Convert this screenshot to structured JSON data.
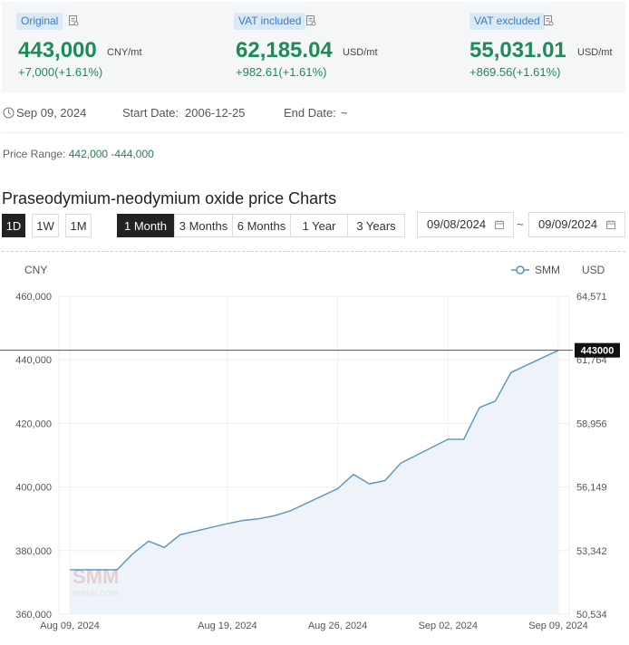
{
  "header": {
    "cards": [
      {
        "badge": "Original",
        "value": "443,000",
        "unit": "CNY/mt",
        "change": "+7,000(+1.61%)"
      },
      {
        "badge": "VAT included",
        "value": "62,185.04",
        "unit": "USD/mt",
        "change": "+982.61(+1.61%)"
      },
      {
        "badge": "VAT excluded",
        "value": "55,031.01",
        "unit": "USD/mt",
        "change": "+869.56(+1.61%)"
      }
    ]
  },
  "info": {
    "date": "Sep 09, 2024",
    "start_label": "Start Date:",
    "start_value": "2006-12-25",
    "end_label": "End Date:",
    "end_value": "~"
  },
  "price_range": {
    "label": "Price Range:",
    "value": "442,000 -444,000"
  },
  "chart_title": "Praseodymium-neodymium oxide price Charts",
  "controls": {
    "short_buttons": [
      "1D",
      "1W",
      "1M"
    ],
    "range_buttons": [
      "1 Month",
      "3 Months",
      "6 Months",
      "1 Year",
      "3 Years"
    ],
    "active_short": "1D",
    "active_range": "1 Month",
    "date_from": "09/08/2024",
    "date_to": "09/09/2024",
    "date_separator": "~"
  },
  "colors": {
    "accent": "#1f8a5a",
    "line": "#5b93bd",
    "fill": "#edf3f8",
    "badge": "#dbe9f5"
  },
  "chart_data": {
    "type": "area",
    "left_unit": "CNY",
    "right_unit": "USD",
    "legend": "SMM",
    "legend_position": "top-right",
    "grid": true,
    "ylim": [
      360000,
      460000
    ],
    "y_ticks": [
      360000,
      380000,
      400000,
      420000,
      440000,
      460000
    ],
    "y_tick_labels": [
      "360,000",
      "380,000",
      "400,000",
      "420,000",
      "440,000",
      "460,000"
    ],
    "right_tick_labels": [
      "50,534",
      "53,342",
      "56,149",
      "58,956",
      "61,764",
      "64,571"
    ],
    "x_tick_labels": [
      "Aug 09, 2024",
      "Aug 19, 2024",
      "Aug 26, 2024",
      "Sep 02, 2024",
      "Sep 09, 2024"
    ],
    "x_tick_dates": [
      "2024-08-09",
      "2024-08-19",
      "2024-08-26",
      "2024-09-02",
      "2024-09-09"
    ],
    "current_value": 443000,
    "current_label": "443000",
    "series": [
      {
        "x": [
          "2024-08-09",
          "2024-08-12",
          "2024-08-13",
          "2024-08-14",
          "2024-08-15",
          "2024-08-16",
          "2024-08-19",
          "2024-08-20",
          "2024-08-21",
          "2024-08-22",
          "2024-08-23",
          "2024-08-26",
          "2024-08-27",
          "2024-08-28",
          "2024-08-29",
          "2024-08-30",
          "2024-09-02",
          "2024-09-03",
          "2024-09-04",
          "2024-09-05",
          "2024-09-06",
          "2024-09-09"
        ],
        "values": [
          374000,
          374000,
          379000,
          383000,
          381000,
          385000,
          388500,
          389500,
          390000,
          391000,
          392500,
          399500,
          404000,
          401000,
          402000,
          407500,
          415000,
          415000,
          425000,
          427000,
          436000,
          443000
        ]
      }
    ]
  }
}
